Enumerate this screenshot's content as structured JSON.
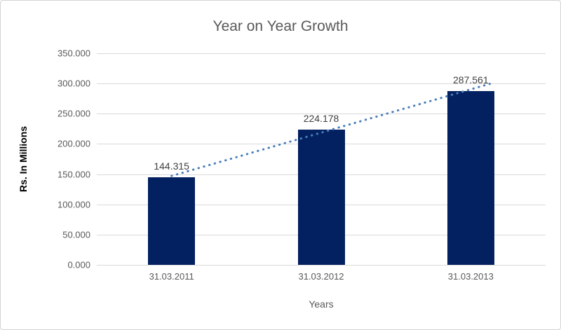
{
  "chart_data": {
    "type": "bar",
    "title": "Year on Year Growth",
    "xlabel": "Years",
    "ylabel": "Rs. In Millions",
    "categories": [
      "31.03.2011",
      "31.03.2012",
      "31.03.2013"
    ],
    "values": [
      144.315,
      224.178,
      287.561
    ],
    "data_labels": [
      "144.315",
      "224.178",
      "287.561"
    ],
    "ylim": [
      0,
      350
    ],
    "ytick_step": 50,
    "ytick_labels": [
      "0.000",
      "50.000",
      "100.000",
      "150.000",
      "200.000",
      "250.000",
      "300.000",
      "350.000"
    ],
    "grid": true,
    "legend": "none",
    "bar_color": "#032160",
    "trendline": {
      "type": "linear",
      "style": "dotted",
      "color": "#4a7ebb"
    },
    "colors": {
      "title": "#595959",
      "tick_labels": "#595959",
      "data_labels": "#404040",
      "gridline": "#d9d9d9",
      "y_axis_title": "#000000",
      "x_axis_title": "#595959",
      "frame_border": "#d3d3d3",
      "background": "#ffffff"
    }
  }
}
